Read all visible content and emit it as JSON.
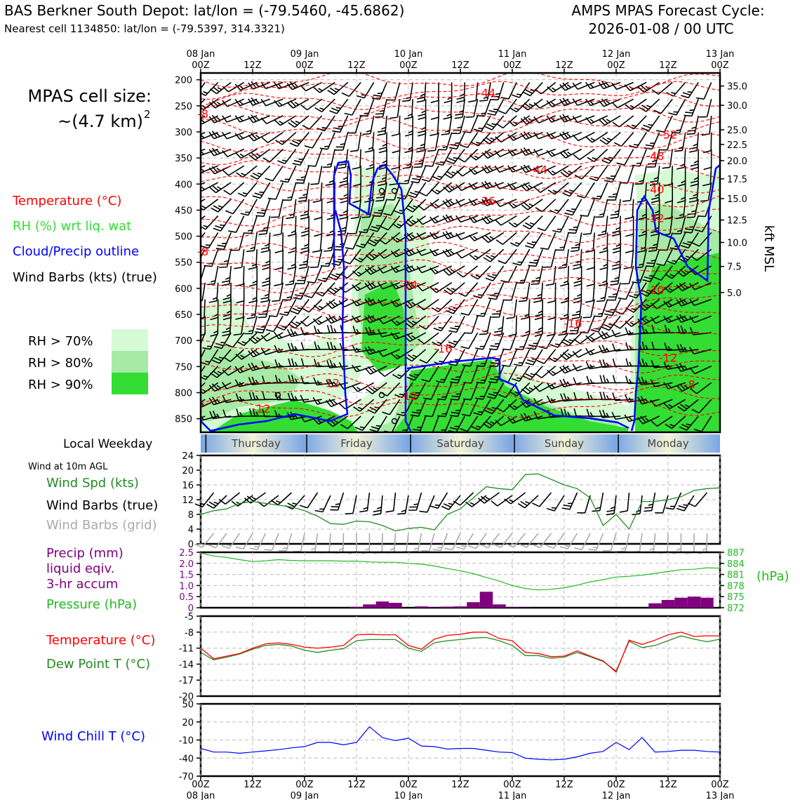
{
  "header": {
    "station_title": "BAS Berkner South Depot: lat/lon = (-79.5460, -45.6862)",
    "nearest_cell": "Nearest cell 1134850: lat/lon = (-79.5397, 314.3321)",
    "forecast_label": "AMPS MPAS Forecast Cycle:",
    "forecast_cycle": "2026-01-08 / 00 UTC"
  },
  "legend": {
    "cell_size_label": "MPAS cell size:",
    "cell_size_value": "~(4.7 km)",
    "cell_size_exp": "2",
    "temperature": "Temperature (°C)",
    "rh": "RH (%) wrt liq. wat",
    "cloud": "Cloud/Precip outline",
    "wind_barbs": "Wind Barbs (kts) (true)",
    "rh70": "RH > 70%",
    "rh80": "RH > 80%",
    "rh90": "RH > 90%",
    "weekday_title": "Local Weekday",
    "wind_10m": "Wind at 10m AGL",
    "wind_spd": "Wind Spd (kts)",
    "wind_barbs_true": "Wind Barbs (true)",
    "wind_barbs_grid": "Wind Barbs (grid)",
    "precip_l1": "Precip (mm)",
    "precip_l2": "liquid eqiv.",
    "precip_l3": "3-hr accum",
    "pressure": "Pressure (hPa)",
    "pressure_unit": "(hPa)",
    "temp2": "Temperature (°C)",
    "dewpoint": "Dew Point T (°C)",
    "windchill": "Wind Chill T (°C)",
    "kft_label": "kft MSL"
  },
  "colors": {
    "temp": "#ff0000",
    "rh_label": "#33dd33",
    "cloud": "#0000ff",
    "rh70": "#d4fbd4",
    "rh80": "#a6eaa6",
    "rh90": "#33dd33",
    "wind": "#228b22",
    "precip": "#800080",
    "pressure": "#22bb22",
    "dew": "#228b22",
    "chill": "#0000ff",
    "grid_barb": "#aaaaaa",
    "day_blue": "#7aa6e6",
    "day_cream": "#f4f3d6"
  },
  "chart_data": [
    {
      "type": "heatmap",
      "title": "Time-height cross section",
      "x_top_ticks": [
        {
          "l1": "08 Jan",
          "l2": "00Z"
        },
        {
          "l1": "",
          "l2": "12Z"
        },
        {
          "l1": "09 Jan",
          "l2": "00Z"
        },
        {
          "l1": "",
          "l2": "12Z"
        },
        {
          "l1": "10 Jan",
          "l2": "00Z"
        },
        {
          "l1": "",
          "l2": "12Z"
        },
        {
          "l1": "11 Jan",
          "l2": "00Z"
        },
        {
          "l1": "",
          "l2": "12Z"
        },
        {
          "l1": "12 Jan",
          "l2": "00Z"
        },
        {
          "l1": "",
          "l2": "12Z"
        },
        {
          "l1": "13 Jan",
          "l2": "00Z"
        }
      ],
      "x_hours": [
        0,
        12,
        24,
        36,
        48,
        60,
        72,
        84,
        96,
        108,
        120
      ],
      "y_pressure_ticks": [
        "200",
        "250",
        "300",
        "350",
        "400",
        "450",
        "500",
        "550",
        "600",
        "650",
        "700",
        "750",
        "800",
        "850"
      ],
      "ylim_hpa": [
        187,
        876
      ],
      "y_kft_ticks": [
        "35.0",
        "30.0",
        "25.0",
        "22.5",
        "20.0",
        "17.5",
        "15.0",
        "12.5",
        "10.0",
        "7.5",
        "5.0"
      ],
      "y_kft_hpa": [
        212,
        249,
        296,
        324,
        355,
        390,
        428,
        469,
        512,
        558,
        608
      ],
      "temp_labels": [
        {
          "text": "-44",
          "hour": 66,
          "hpa": 225
        },
        {
          "text": "-8",
          "hour": 0.5,
          "hpa": 265
        },
        {
          "text": "-52",
          "hour": 108,
          "hpa": 305
        },
        {
          "text": "-48",
          "hour": 105,
          "hpa": 346
        },
        {
          "text": "-44",
          "hour": 78,
          "hpa": 372
        },
        {
          "text": "-40",
          "hour": 105,
          "hpa": 410
        },
        {
          "text": "-36",
          "hour": 66,
          "hpa": 432
        },
        {
          "text": "-32",
          "hour": 105,
          "hpa": 465
        },
        {
          "text": "-8",
          "hour": 0.5,
          "hpa": 529
        },
        {
          "text": "-24",
          "hour": 48,
          "hpa": 593
        },
        {
          "text": "-20",
          "hour": 105,
          "hpa": 603
        },
        {
          "text": "-16",
          "hour": 86,
          "hpa": 667
        },
        {
          "text": "-16",
          "hour": 56,
          "hpa": 715
        },
        {
          "text": "-12",
          "hour": 108,
          "hpa": 733
        },
        {
          "text": "-12",
          "hour": 30,
          "hpa": 781
        },
        {
          "text": "-8",
          "hour": 113,
          "hpa": 784
        },
        {
          "text": "-12",
          "hour": 48,
          "hpa": 806
        },
        {
          "text": "-12",
          "hour": 14,
          "hpa": 830
        }
      ],
      "day_labels": [
        "Thursday",
        "Friday",
        "Saturday",
        "Sunday",
        "Monday"
      ]
    },
    {
      "type": "line",
      "title": "Wind at 10m AGL",
      "ylabel": "Wind Spd (kts)",
      "ylim": [
        0,
        24
      ],
      "y_ticks": [
        "0",
        "4",
        "8",
        "12",
        "16",
        "20",
        "24"
      ],
      "x": [
        0,
        3,
        6,
        9,
        12,
        15,
        18,
        21,
        24,
        27,
        30,
        33,
        36,
        39,
        42,
        45,
        48,
        51,
        54,
        57,
        60,
        63,
        66,
        69,
        72,
        75,
        78,
        81,
        84,
        87,
        90,
        93,
        96,
        99,
        102,
        105,
        108,
        111,
        114,
        117,
        120
      ],
      "series": [
        {
          "name": "Wind Spd",
          "values": [
            8,
            9,
            9.5,
            11,
            11.5,
            11,
            10.5,
            10,
            9,
            7.5,
            5.5,
            5.3,
            6.2,
            6,
            5,
            3.5,
            4.2,
            4.5,
            3.8,
            8,
            9.5,
            12.5,
            15.5,
            15,
            14.7,
            18.8,
            19,
            17.5,
            16,
            15,
            12.5,
            5,
            8,
            4,
            11.5,
            11.5,
            12,
            12.8,
            14.5,
            15,
            15.2
          ]
        }
      ]
    },
    {
      "type": "bar",
      "title": "Precip and Pressure",
      "ylim": [
        0,
        2.5
      ],
      "y_ticks": [
        "0",
        "0.5",
        "1.0",
        "1.5",
        "2.0",
        "2.5"
      ],
      "y2_ticks": [
        "872",
        "875",
        "878",
        "881",
        "884",
        "887"
      ],
      "y2lim": [
        872,
        887
      ],
      "series": [
        {
          "name": "Precip (mm)",
          "x": [
            36,
            39,
            42,
            45,
            51,
            54,
            57,
            60,
            63,
            66,
            69,
            72,
            75,
            105,
            108,
            111,
            114,
            117
          ],
          "values": [
            0.04,
            0.15,
            0.28,
            0.22,
            0.06,
            0.02,
            0.05,
            0.06,
            0.25,
            0.72,
            0.15,
            0.02,
            0.01,
            0.2,
            0.35,
            0.45,
            0.5,
            0.45
          ]
        },
        {
          "name": "Pressure (hPa)",
          "x": [
            0,
            3,
            6,
            9,
            12,
            15,
            18,
            21,
            24,
            27,
            30,
            33,
            36,
            39,
            42,
            45,
            48,
            51,
            54,
            57,
            60,
            63,
            66,
            69,
            72,
            75,
            78,
            81,
            84,
            87,
            90,
            93,
            96,
            99,
            102,
            105,
            108,
            111,
            114,
            117,
            120
          ],
          "values": [
            886.8,
            886,
            885.6,
            885,
            884.5,
            884.7,
            885,
            884.8,
            884.7,
            884.7,
            884.7,
            884.6,
            884.6,
            884.4,
            884.3,
            884.3,
            884,
            883.8,
            883.3,
            882.6,
            882,
            881.2,
            880.2,
            879.2,
            878,
            877.2,
            876.8,
            877,
            877.4,
            878.1,
            879,
            879.6,
            880.3,
            880.5,
            880.8,
            881.3,
            881.8,
            882.3,
            882.4,
            882.8,
            882.7
          ]
        }
      ]
    },
    {
      "type": "line",
      "title": "Temperature and Dew Point",
      "ylim": [
        -20,
        -5
      ],
      "y_ticks": [
        "-5",
        "-8",
        "-11",
        "-14",
        "-17",
        "-20"
      ],
      "x": [
        0,
        3,
        6,
        9,
        12,
        15,
        18,
        21,
        24,
        27,
        30,
        33,
        36,
        39,
        42,
        45,
        48,
        51,
        54,
        57,
        60,
        63,
        66,
        69,
        72,
        75,
        78,
        81,
        84,
        87,
        90,
        93,
        96,
        99,
        102,
        105,
        108,
        111,
        114,
        117,
        120
      ],
      "series": [
        {
          "name": "Temperature",
          "values": [
            -11,
            -13,
            -12.5,
            -12,
            -11,
            -10.2,
            -10,
            -10.3,
            -10.8,
            -11,
            -10.8,
            -10.5,
            -8.5,
            -8.4,
            -8.5,
            -8.5,
            -10.5,
            -11.2,
            -9.3,
            -8.6,
            -8.4,
            -8,
            -8,
            -9.2,
            -9.6,
            -11.8,
            -12,
            -12.6,
            -12.5,
            -11.5,
            -12.5,
            -13.4,
            -15.5,
            -9.5,
            -10.3,
            -9.5,
            -8.5,
            -8,
            -8.8,
            -8.7,
            -8.7
          ]
        },
        {
          "name": "Dew Point",
          "values": [
            -11.8,
            -13.2,
            -12.7,
            -12.1,
            -11.2,
            -10.5,
            -10.3,
            -10.6,
            -11.4,
            -11.8,
            -11.4,
            -11.1,
            -9.6,
            -9.4,
            -9.4,
            -9.4,
            -11,
            -11.6,
            -10,
            -9.6,
            -9.4,
            -9.1,
            -9,
            -9.6,
            -10.5,
            -12.4,
            -12.4,
            -12.9,
            -12.7,
            -11.8,
            -12.6,
            -13.5,
            -15.3,
            -9.7,
            -10.9,
            -10.5,
            -9.6,
            -8.7,
            -9.3,
            -9.8,
            -9.3
          ]
        }
      ]
    },
    {
      "type": "line",
      "title": "Wind Chill",
      "ylabel": "Wind Chill T (°C)",
      "ylim": [
        -70,
        50
      ],
      "y_ticks": [
        "50",
        "20",
        "-10",
        "-40",
        "-70"
      ],
      "x": [
        0,
        3,
        6,
        9,
        12,
        15,
        18,
        21,
        24,
        27,
        30,
        33,
        36,
        39,
        42,
        45,
        48,
        51,
        54,
        57,
        60,
        63,
        66,
        69,
        72,
        75,
        78,
        81,
        84,
        87,
        90,
        93,
        96,
        99,
        102,
        105,
        108,
        111,
        114,
        117,
        120
      ],
      "series": [
        {
          "name": "Wind Chill",
          "values": [
            -24,
            -30,
            -30,
            -32,
            -30,
            -28,
            -26,
            -23,
            -21,
            -14,
            -14,
            -18,
            -14,
            12,
            -6,
            -11,
            -7,
            -20,
            -21,
            -25,
            -24,
            -24,
            -27,
            -30,
            -31,
            -40,
            -42,
            -43,
            -42,
            -38,
            -32,
            -29,
            -14,
            -26,
            -6,
            -30,
            -29,
            -27,
            -27,
            -29,
            -30
          ]
        }
      ]
    },
    {
      "type": "table",
      "title": "Bottom time axis",
      "ticks": [
        {
          "l1": "00Z",
          "l2": "08 Jan"
        },
        {
          "l1": "12Z",
          "l2": ""
        },
        {
          "l1": "00Z",
          "l2": "09 Jan"
        },
        {
          "l1": "12Z",
          "l2": ""
        },
        {
          "l1": "00Z",
          "l2": "10 Jan"
        },
        {
          "l1": "12Z",
          "l2": ""
        },
        {
          "l1": "00Z",
          "l2": "11 Jan"
        },
        {
          "l1": "12Z",
          "l2": ""
        },
        {
          "l1": "00Z",
          "l2": "12 Jan"
        },
        {
          "l1": "12Z",
          "l2": ""
        },
        {
          "l1": "00Z",
          "l2": "13 Jan"
        }
      ]
    }
  ]
}
